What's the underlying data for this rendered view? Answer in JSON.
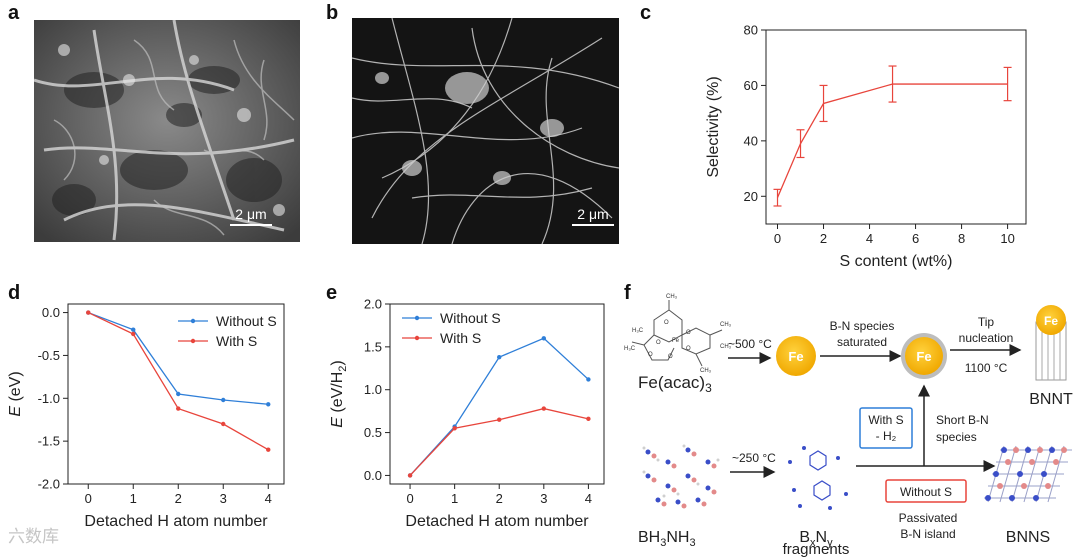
{
  "panels": {
    "a": {
      "letter": "a",
      "scale": "2 μm"
    },
    "b": {
      "letter": "b",
      "scale": "2 μm"
    },
    "c": {
      "letter": "c"
    },
    "d": {
      "letter": "d"
    },
    "e": {
      "letter": "e"
    },
    "f": {
      "letter": "f"
    }
  },
  "chart_data": [
    {
      "id": "c",
      "type": "line",
      "xlabel": "S content (wt%)",
      "ylabel": "Selectivity (%)",
      "x": [
        0,
        1,
        2,
        5,
        10
      ],
      "x_ticks": [
        "0",
        "2",
        "4",
        "6",
        "8",
        "10"
      ],
      "y_ticks": [
        "20",
        "40",
        "60",
        "80"
      ],
      "xlim": [
        -0.5,
        10.8
      ],
      "ylim": [
        10,
        80
      ],
      "series": [
        {
          "values": [
            19.5,
            39,
            53.5,
            60.5,
            60.5
          ],
          "error": [
            3,
            5,
            6.5,
            6.5,
            6
          ],
          "color": "#e8453c"
        }
      ]
    },
    {
      "id": "d",
      "type": "line",
      "xlabel": "Detached H atom number",
      "ylabel": {
        "italic": "E",
        "rest": " (eV)"
      },
      "x": [
        0,
        1,
        2,
        3,
        4
      ],
      "x_ticks": [
        "0",
        "1",
        "2",
        "3",
        "4"
      ],
      "y_ticks": [
        "0.0",
        "-0.5",
        "-1.0",
        "-1.5",
        "-2.0"
      ],
      "xlim": [
        -0.45,
        4.35
      ],
      "ylim": [
        -2.0,
        0.1
      ],
      "legend_position": "top-right",
      "series": [
        {
          "name": "Without S",
          "values": [
            0,
            -0.2,
            -0.95,
            -1.02,
            -1.07
          ],
          "color": "#2f7fd8"
        },
        {
          "name": "With S",
          "values": [
            0,
            -0.25,
            -1.12,
            -1.3,
            -1.6
          ],
          "color": "#e8453c"
        }
      ]
    },
    {
      "id": "e",
      "type": "line",
      "xlabel": "Detached H atom number",
      "ylabel": {
        "italic": "E",
        "pre": " (eV/H",
        "sub": "2",
        "post": ")"
      },
      "x": [
        0,
        1,
        2,
        3,
        4
      ],
      "x_ticks": [
        "0",
        "1",
        "2",
        "3",
        "4"
      ],
      "y_ticks": [
        "0.0",
        "0.5",
        "1.0",
        "1.5",
        "2.0"
      ],
      "xlim": [
        -0.45,
        4.35
      ],
      "ylim": [
        -0.1,
        2.0
      ],
      "legend_position": "top-left",
      "series": [
        {
          "name": "Without S",
          "values": [
            0,
            0.57,
            1.38,
            1.6,
            1.12
          ],
          "color": "#2f7fd8"
        },
        {
          "name": "With S",
          "values": [
            0,
            0.55,
            0.65,
            0.78,
            0.66
          ],
          "color": "#e8453c"
        }
      ]
    }
  ],
  "diagram_f": {
    "fe_label": "Fe",
    "fe_acac": {
      "main": "Fe(acac)",
      "sub": "3"
    },
    "temp_500": "~500 °C",
    "saturated": [
      "B-N species",
      "saturated"
    ],
    "tip": [
      "Tip",
      "nucleation"
    ],
    "temp_1100": "1100 °C",
    "bnnt": "BNNT",
    "with_s": [
      "With S",
      "- H₂"
    ],
    "short_bn": [
      "Short B-N",
      "species"
    ],
    "temp_250": "~250 °C",
    "bh3nh3": {
      "a": "BH",
      "b": "3",
      "c": "NH",
      "d": "3"
    },
    "bxny": {
      "a": "B",
      "b": "x",
      "c": "N",
      "d": "y"
    },
    "fragments": "fragments",
    "without_s": "Without S",
    "passivated": [
      "Passivated",
      "B-N island"
    ],
    "bnns": "BNNS",
    "acac_atoms": [
      "CH₃",
      "O",
      "Fe",
      "H₃C",
      "CH₃",
      "O",
      "O",
      "O",
      "CH₃",
      "O",
      "O",
      "CH₃",
      "H₃C"
    ]
  },
  "watermark": "六数库"
}
